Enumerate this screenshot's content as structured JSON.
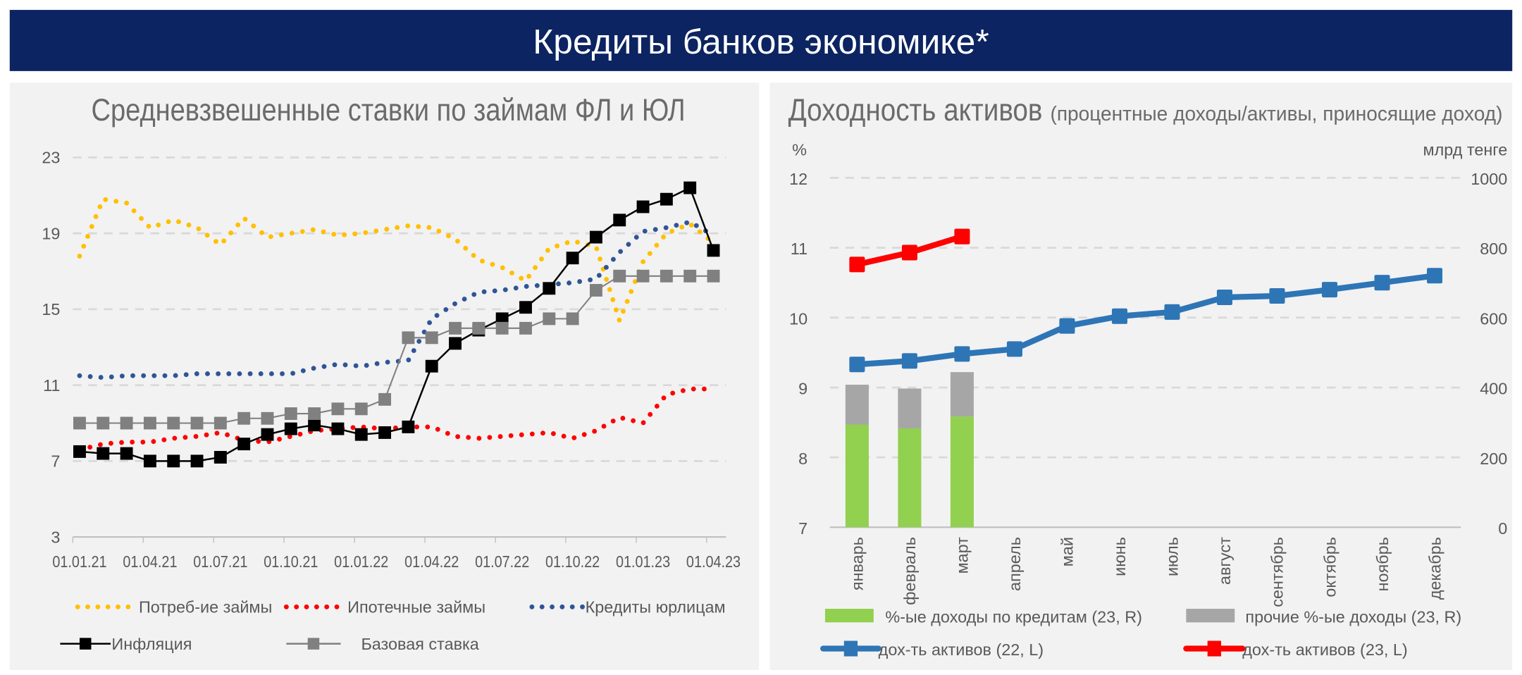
{
  "banner": {
    "title": "Кредиты банков экономике*",
    "color": "#0c2461"
  },
  "chart_data": [
    {
      "type": "line",
      "title": "Средневзвешенные ставки по займам ФЛ и ЮЛ",
      "x_ticks": [
        "01.01.21",
        "01.04.21",
        "01.07.21",
        "01.10.21",
        "01.01.22",
        "01.04.22",
        "01.07.22",
        "01.10.22",
        "01.01.23",
        "01.04.23"
      ],
      "x": [
        "01.01.21",
        "01.02.21",
        "01.03.21",
        "01.04.21",
        "01.05.21",
        "01.06.21",
        "01.07.21",
        "01.08.21",
        "01.09.21",
        "01.10.21",
        "01.11.21",
        "01.12.21",
        "01.01.22",
        "01.02.22",
        "01.03.22",
        "01.04.22",
        "01.05.22",
        "01.06.22",
        "01.07.22",
        "01.08.22",
        "01.09.22",
        "01.10.22",
        "01.11.22",
        "01.12.22",
        "01.01.23",
        "01.02.23",
        "01.03.23",
        "01.04.23"
      ],
      "ylim": [
        3,
        23
      ],
      "y_ticks": [
        "3",
        "7",
        "11",
        "15",
        "19",
        "23"
      ],
      "grid": true,
      "legend_placement": "bottom",
      "series": [
        {
          "name": "Потреб-ие займы",
          "style": "dotted",
          "color": "#ffc000",
          "values": [
            17.8,
            20.8,
            20.6,
            19.3,
            19.7,
            19.3,
            18.4,
            19.8,
            18.8,
            19.0,
            19.2,
            18.9,
            19.0,
            19.2,
            19.4,
            19.3,
            18.7,
            17.6,
            17.2,
            16.5,
            18.2,
            18.6,
            18.3,
            14.4,
            17.5,
            19.0,
            19.5,
            18.5
          ]
        },
        {
          "name": "Ипотечные займы",
          "style": "dotted",
          "color": "#ff0000",
          "values": [
            7.6,
            7.9,
            8.0,
            8.0,
            8.2,
            8.3,
            8.5,
            8.1,
            8.0,
            8.3,
            8.6,
            8.7,
            8.8,
            8.7,
            8.8,
            8.8,
            8.3,
            8.2,
            8.3,
            8.4,
            8.5,
            8.2,
            8.6,
            9.3,
            9.0,
            10.5,
            10.8,
            10.8
          ]
        },
        {
          "name": "Кредиты юрлицам",
          "style": "dotted",
          "color": "#2f5597",
          "values": [
            11.5,
            11.4,
            11.5,
            11.5,
            11.5,
            11.6,
            11.6,
            11.6,
            11.6,
            11.6,
            11.9,
            12.1,
            12.0,
            12.2,
            12.3,
            14.5,
            15.3,
            15.9,
            16.0,
            16.2,
            16.3,
            16.4,
            16.6,
            18.0,
            19.1,
            19.3,
            19.6,
            18.9
          ]
        },
        {
          "name": "Инфляция",
          "style": "line-square",
          "color": "#000000",
          "values": [
            7.5,
            7.4,
            7.4,
            7.0,
            7.0,
            7.0,
            7.2,
            7.9,
            8.4,
            8.7,
            8.9,
            8.7,
            8.4,
            8.5,
            8.8,
            12.0,
            13.2,
            13.9,
            14.5,
            15.1,
            16.1,
            17.7,
            18.8,
            19.7,
            20.4,
            20.8,
            21.4,
            18.1
          ]
        },
        {
          "name": "Базовая ставка",
          "style": "line-square",
          "color": "#808080",
          "values": [
            9.0,
            9.0,
            9.0,
            9.0,
            9.0,
            9.0,
            9.0,
            9.25,
            9.25,
            9.5,
            9.5,
            9.75,
            9.75,
            10.25,
            13.5,
            13.5,
            14.0,
            14.0,
            14.0,
            14.0,
            14.5,
            14.5,
            16.0,
            16.75,
            16.75,
            16.75,
            16.75,
            16.75
          ]
        }
      ]
    },
    {
      "type": "bar+line",
      "title": "Доходность активов",
      "subtitle": "(процентные доходы/активы, приносящие доход)",
      "ylabel_left": "%",
      "ylabel_right": "млрд тенге",
      "ylim_left": [
        7,
        12
      ],
      "ylim_right": [
        0,
        1000
      ],
      "y_ticks_left": [
        "7",
        "8",
        "9",
        "10",
        "11",
        "12"
      ],
      "y_ticks_right": [
        "0",
        "200",
        "400",
        "600",
        "800",
        "1000"
      ],
      "grid": true,
      "legend_placement": "bottom",
      "categories": [
        "январь",
        "февраль",
        "март",
        "апрель",
        "май",
        "июнь",
        "июль",
        "август",
        "сентябрь",
        "октябрь",
        "ноябрь",
        "декабрь"
      ],
      "bars": [
        {
          "name": "%-ые доходы по кредитам (23, R)",
          "color": "#92d050",
          "values": [
            294,
            283,
            317
          ]
        },
        {
          "name": "прочие %-ые доходы (23, R)",
          "color": "#a6a6a6",
          "values": [
            114,
            114,
            127
          ]
        }
      ],
      "lines": [
        {
          "name": "дох-ть активов (22, L)",
          "color": "#2e75b6",
          "values": [
            9.33,
            9.38,
            9.48,
            9.55,
            9.88,
            10.02,
            10.08,
            10.29,
            10.31,
            10.4,
            10.5,
            10.6
          ]
        },
        {
          "name": "дох-ть активов (23, L)",
          "color": "#ff0000",
          "values": [
            10.76,
            10.93,
            11.16
          ]
        }
      ]
    }
  ]
}
